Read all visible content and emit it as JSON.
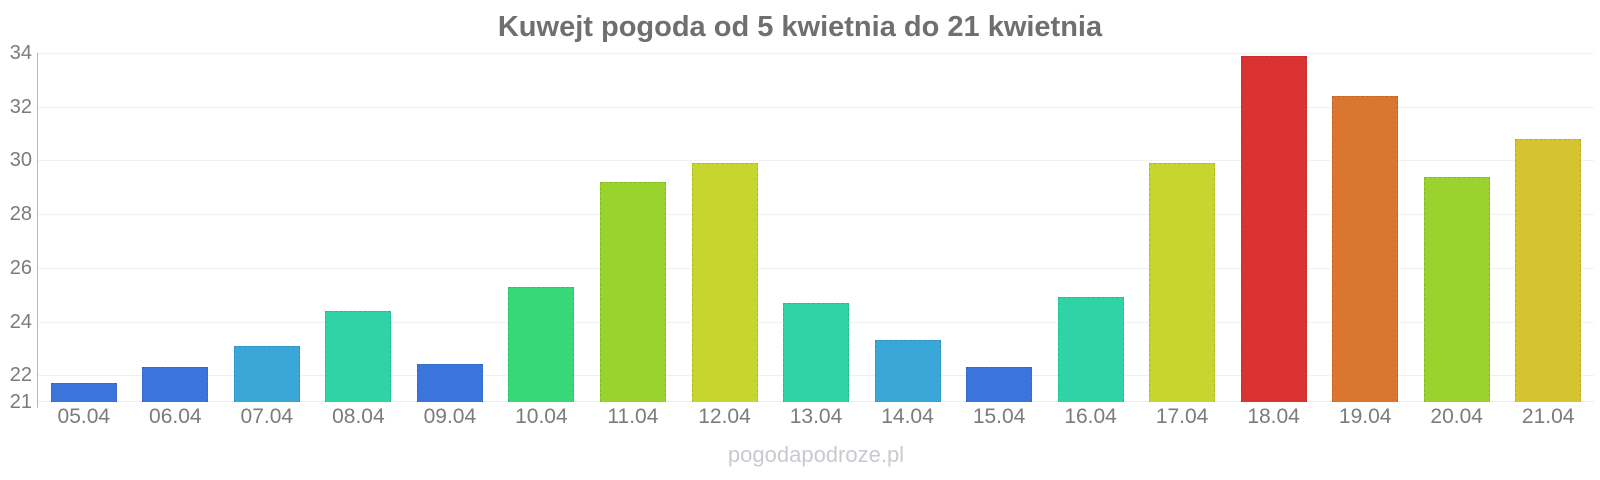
{
  "page": {
    "watermark": "pogodapodroze.pl"
  },
  "chart_data": {
    "type": "bar",
    "title": "Kuwejt pogoda od 5 kwietnia do 21 kwietnia",
    "xlabel": "",
    "ylabel": "",
    "categories": [
      "05.04",
      "06.04",
      "07.04",
      "08.04",
      "09.04",
      "10.04",
      "11.04",
      "12.04",
      "13.04",
      "14.04",
      "15.04",
      "16.04",
      "17.04",
      "18.04",
      "19.04",
      "20.04",
      "21.04"
    ],
    "values": [
      21.7,
      22.3,
      23.1,
      24.4,
      22.4,
      25.3,
      29.2,
      29.9,
      24.7,
      23.3,
      22.3,
      24.9,
      29.9,
      33.9,
      32.4,
      29.4,
      30.8
    ],
    "bar_colors": [
      "#3B75DB",
      "#3B75DB",
      "#39A8D9",
      "#30D3A6",
      "#3B75DB",
      "#36D878",
      "#9AD32E",
      "#C6D62E",
      "#30D3A6",
      "#39A8D9",
      "#3B75DB",
      "#30D3A6",
      "#C6D62E",
      "#DB3332",
      "#DB7631",
      "#9AD32E",
      "#D5C42F"
    ],
    "ylim": [
      21,
      34
    ],
    "yticks": [
      21,
      22,
      24,
      26,
      28,
      30,
      32,
      34
    ],
    "grid": "horizontal-only",
    "legend": "none",
    "colors": {
      "title": "#6f6f6f",
      "axis_labels": "#7b7b7b",
      "axis_line": "#b6b6b6",
      "gridline": "#f1f1f1",
      "watermark": "#c7cbcf"
    }
  }
}
